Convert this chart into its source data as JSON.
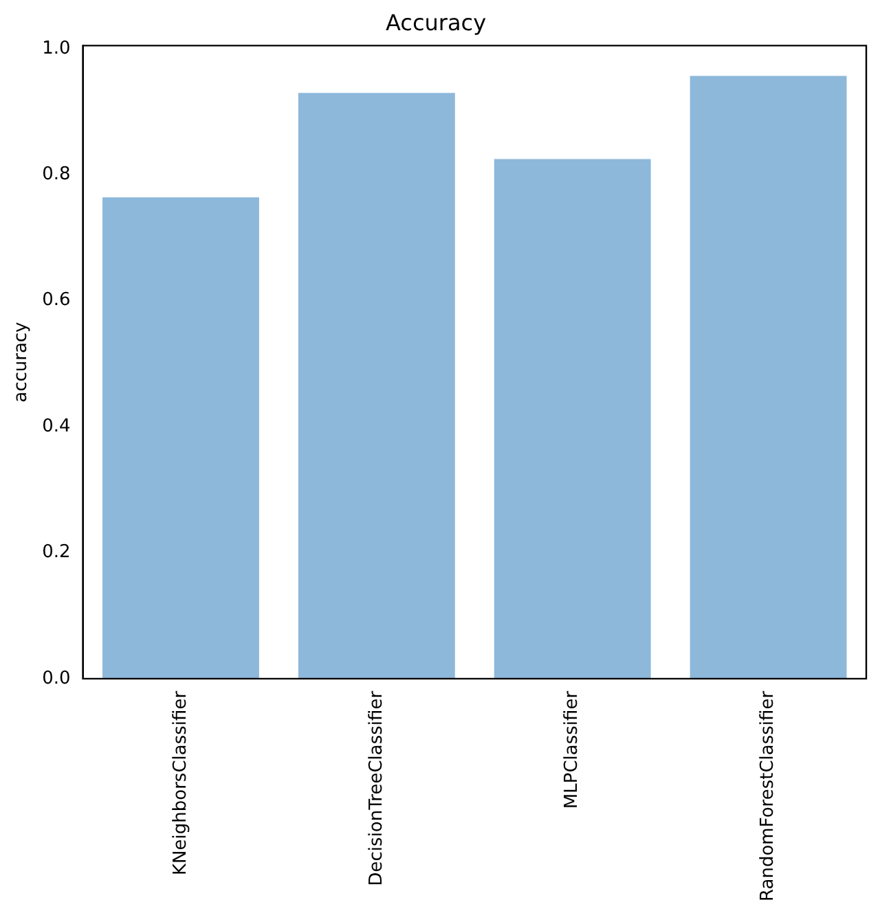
{
  "chart_data": {
    "type": "bar",
    "title": "Accuracy",
    "ylabel": "accuracy",
    "categories": [
      "KNeighborsClassifier",
      "DecisionTreeClassifier",
      "MLPClassifier",
      "RandomForestClassifier"
    ],
    "values": [
      0.764,
      0.93,
      0.825,
      0.957
    ],
    "color": "#8db8da",
    "ylim": [
      0,
      1.005
    ],
    "yticks": [
      {
        "value": 0,
        "label": "0.0"
      },
      {
        "value": 0.2,
        "label": "0.2"
      },
      {
        "value": 0.4,
        "label": "0.4"
      },
      {
        "value": 0.6,
        "label": "0.6"
      },
      {
        "value": 0.8,
        "label": "0.8"
      },
      {
        "value": 1,
        "label": "1.0"
      }
    ],
    "grid": false,
    "legend": false
  }
}
